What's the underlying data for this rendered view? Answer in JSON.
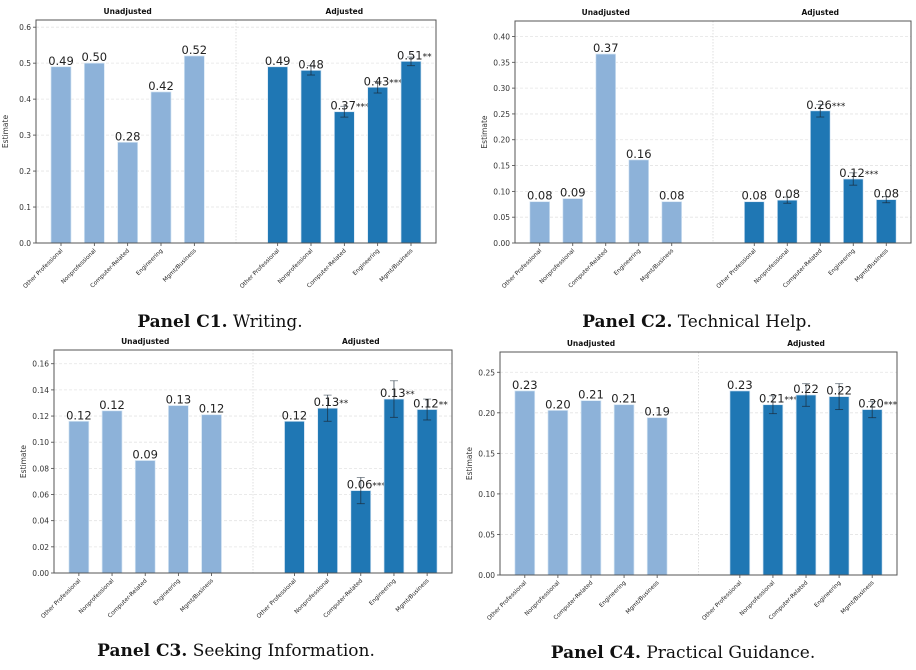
{
  "chart_data": [
    {
      "type": "bar",
      "panel": "C1",
      "caption_label": "Panel C1.",
      "caption_text": "Writing.",
      "groups": [
        "Unadjusted",
        "Adjusted"
      ],
      "categories": [
        "Other Professional",
        "Nonprofessional",
        "Computer-Related",
        "Engineering",
        "Mgmt/Business"
      ],
      "series": [
        {
          "name": "Unadjusted",
          "values": [
            0.49,
            0.5,
            0.28,
            0.42,
            0.52
          ],
          "labels": [
            "0.49",
            "0.50",
            "0.28",
            "0.42",
            "0.52"
          ],
          "errors": [
            null,
            null,
            null,
            null,
            null
          ],
          "color": "#8db2d9"
        },
        {
          "name": "Adjusted",
          "values": [
            0.49,
            0.48,
            0.365,
            0.433,
            0.505
          ],
          "labels": [
            "0.49",
            "0.48",
            "0.37***",
            "0.43***",
            "0.51**"
          ],
          "errors": [
            null,
            0.013,
            0.015,
            0.016,
            0.012
          ],
          "color": "#1f77b4"
        }
      ],
      "ylabel": "Estimate",
      "ylim": [
        0,
        0.62
      ],
      "yticks": [
        0.0,
        0.1,
        0.2,
        0.3,
        0.4,
        0.5,
        0.6
      ],
      "ytick_labels": [
        "0.0",
        "0.1",
        "0.2",
        "0.3",
        "0.4",
        "0.5",
        "0.6"
      ],
      "grid": true
    },
    {
      "type": "bar",
      "panel": "C2",
      "caption_label": "Panel C2.",
      "caption_text": "Technical Help.",
      "groups": [
        "Unadjusted",
        "Adjusted"
      ],
      "categories": [
        "Other Professional",
        "Nonprofessional",
        "Computer-Related",
        "Engineering",
        "Mgmt/Business"
      ],
      "series": [
        {
          "name": "Unadjusted",
          "values": [
            0.08,
            0.086,
            0.366,
            0.161,
            0.08
          ],
          "labels": [
            "0.08",
            "0.09",
            "0.37",
            "0.16",
            "0.08"
          ],
          "errors": [
            null,
            null,
            null,
            null,
            null
          ],
          "color": "#8db2d9"
        },
        {
          "name": "Adjusted",
          "values": [
            0.08,
            0.083,
            0.256,
            0.124,
            0.084
          ],
          "labels": [
            "0.08",
            "0.08",
            "0.26***",
            "0.12***",
            "0.08"
          ],
          "errors": [
            null,
            0.006,
            0.012,
            0.012,
            0.006
          ],
          "color": "#1f77b4"
        }
      ],
      "ylabel": "Estimate",
      "ylim": [
        0,
        0.43
      ],
      "yticks": [
        0.0,
        0.05,
        0.1,
        0.15,
        0.2,
        0.25,
        0.3,
        0.35,
        0.4
      ],
      "ytick_labels": [
        "0.00",
        "0.05",
        "0.10",
        "0.15",
        "0.20",
        "0.25",
        "0.30",
        "0.35",
        "0.40"
      ],
      "grid": true
    },
    {
      "type": "bar",
      "panel": "C3",
      "caption_label": "Panel C3.",
      "caption_text": "Seeking Information.",
      "groups": [
        "Unadjusted",
        "Adjusted"
      ],
      "categories": [
        "Other Professional",
        "Nonprofessional",
        "Computer-Related",
        "Engineering",
        "Mgmt/Business"
      ],
      "series": [
        {
          "name": "Unadjusted",
          "values": [
            0.116,
            0.124,
            0.086,
            0.128,
            0.121
          ],
          "labels": [
            "0.12",
            "0.12",
            "0.09",
            "0.13",
            "0.12"
          ],
          "errors": [
            null,
            null,
            null,
            null,
            null
          ],
          "color": "#8db2d9"
        },
        {
          "name": "Adjusted",
          "values": [
            0.116,
            0.126,
            0.063,
            0.133,
            0.125
          ],
          "labels": [
            "0.12",
            "0.13**",
            "0.06***",
            "0.13**",
            "0.12**"
          ],
          "errors": [
            null,
            0.01,
            0.01,
            0.014,
            0.008
          ],
          "color": "#1f77b4"
        }
      ],
      "ylabel": "Estimate",
      "ylim": [
        0,
        0.1705
      ],
      "yticks": [
        0.0,
        0.02,
        0.04,
        0.06,
        0.08,
        0.1,
        0.12,
        0.14,
        0.16
      ],
      "ytick_labels": [
        "0.00",
        "0.02",
        "0.04",
        "0.06",
        "0.08",
        "0.10",
        "0.12",
        "0.14",
        "0.16"
      ],
      "grid": true
    },
    {
      "type": "bar",
      "panel": "C4",
      "caption_label": "Panel C4.",
      "caption_text": "Practical Guidance.",
      "groups": [
        "Unadjusted",
        "Adjusted"
      ],
      "categories": [
        "Other Professional",
        "Nonprofessional",
        "Computer-Related",
        "Engineering",
        "Mgmt/Business"
      ],
      "series": [
        {
          "name": "Unadjusted",
          "values": [
            0.227,
            0.203,
            0.215,
            0.21,
            0.194
          ],
          "labels": [
            "0.23",
            "0.20",
            "0.21",
            "0.21",
            "0.19"
          ],
          "errors": [
            null,
            null,
            null,
            null,
            null
          ],
          "color": "#8db2d9"
        },
        {
          "name": "Adjusted",
          "values": [
            0.227,
            0.21,
            0.222,
            0.22,
            0.204
          ],
          "labels": [
            "0.23",
            "0.21***",
            "0.22",
            "0.22",
            "0.20***"
          ],
          "errors": [
            null,
            0.011,
            0.014,
            0.016,
            0.01
          ],
          "color": "#1f77b4"
        }
      ],
      "ylabel": "Estimate",
      "ylim": [
        0,
        0.275
      ],
      "yticks": [
        0.0,
        0.05,
        0.1,
        0.15,
        0.2,
        0.25
      ],
      "ytick_labels": [
        "0.00",
        "0.05",
        "0.10",
        "0.15",
        "0.20",
        "0.25"
      ],
      "grid": true
    }
  ]
}
